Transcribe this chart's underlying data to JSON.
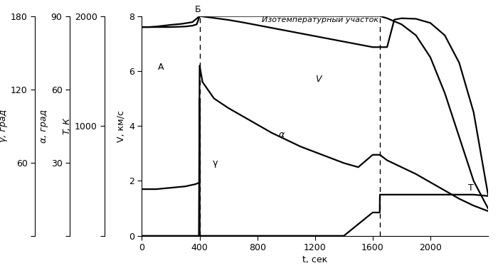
{
  "xlabel": "t, сек",
  "ylabel_V": "V, км/с",
  "ylabel_T": "T, К",
  "ylabel_alpha": "α, град",
  "ylabel_gamma": "γ, град",
  "xlim": [
    0,
    2400
  ],
  "ylim_V": [
    0,
    8
  ],
  "xticks": [
    0,
    400,
    800,
    1200,
    1600,
    2000
  ],
  "yticks_V": [
    0,
    2,
    4,
    6,
    8
  ],
  "yticks_T_labels": [
    "",
    "1000",
    "2000"
  ],
  "yticks_T_vals": [
    0,
    4,
    8
  ],
  "yticks_alpha_labels": [
    "",
    "30",
    "60",
    "90"
  ],
  "yticks_alpha_vals": [
    0,
    2.667,
    5.333,
    8
  ],
  "yticks_gamma_labels": [
    "",
    "60",
    "120",
    "180"
  ],
  "yticks_gamma_vals": [
    0,
    2.667,
    5.333,
    8
  ],
  "label_A": "А",
  "label_B": "Б",
  "label_T": "Т",
  "label_V": "V",
  "label_alpha": "α",
  "label_gamma": "γ",
  "annotation": "Изотемпературный участок",
  "dashed_line_x1": 400,
  "dashed_line_x2": 1650,
  "V_curve_t": [
    0,
    50,
    100,
    150,
    200,
    280,
    350,
    400,
    500,
    600,
    700,
    800,
    900,
    1000,
    1100,
    1200,
    1300,
    1400,
    1500,
    1600,
    1650,
    1700,
    1750,
    1800,
    1900,
    2000,
    2100,
    2200,
    2300,
    2350,
    2400
  ],
  "V_curve_v": [
    7.6,
    7.6,
    7.62,
    7.65,
    7.68,
    7.72,
    7.78,
    8.0,
    7.93,
    7.86,
    7.77,
    7.67,
    7.57,
    7.47,
    7.37,
    7.27,
    7.17,
    7.07,
    6.97,
    6.87,
    6.87,
    6.87,
    7.87,
    7.92,
    7.9,
    7.75,
    7.3,
    6.3,
    4.5,
    3.0,
    1.5
  ],
  "T_curve_t": [
    0,
    50,
    100,
    200,
    300,
    350,
    380,
    400,
    500,
    600,
    800,
    1000,
    1200,
    1400,
    1600,
    1650,
    1700,
    1800,
    1900,
    2000,
    2100,
    2200,
    2300,
    2400
  ],
  "T_curve_v": [
    7.6,
    7.6,
    7.6,
    7.6,
    7.62,
    7.65,
    7.7,
    8.0,
    8.0,
    8.0,
    8.0,
    8.0,
    8.0,
    8.0,
    8.0,
    8.0,
    7.92,
    7.7,
    7.3,
    6.5,
    5.2,
    3.6,
    2.0,
    1.0
  ],
  "alpha_curve_t": [
    0,
    100,
    250,
    350,
    395,
    400,
    420,
    500,
    600,
    700,
    800,
    900,
    1000,
    1100,
    1200,
    1300,
    1400,
    1500,
    1600,
    1650,
    1700,
    1800,
    1900,
    2000,
    2100,
    2200,
    2300,
    2400
  ],
  "alpha_curve_v": [
    0,
    0,
    0,
    0,
    0,
    6.2,
    5.6,
    5.0,
    4.65,
    4.35,
    4.05,
    3.75,
    3.5,
    3.25,
    3.05,
    2.85,
    2.65,
    2.5,
    2.95,
    2.95,
    2.75,
    2.5,
    2.25,
    1.95,
    1.65,
    1.35,
    1.1,
    0.9
  ],
  "gamma_curve_t": [
    0,
    100,
    200,
    300,
    370,
    395,
    399,
    400,
    401,
    450,
    600,
    800,
    1000,
    1200,
    1400,
    1600,
    1640,
    1649,
    1650,
    1660,
    1700,
    1800,
    1900,
    2000,
    2100,
    2200,
    2300,
    2400
  ],
  "gamma_curve_v": [
    1.7,
    1.7,
    1.75,
    1.8,
    1.88,
    1.93,
    1.96,
    5.0,
    0.0,
    0.0,
    0.0,
    0.0,
    0.0,
    0.0,
    0.0,
    0.85,
    0.85,
    0.85,
    1.5,
    1.5,
    1.5,
    1.5,
    1.5,
    1.5,
    1.5,
    1.5,
    1.5,
    1.45
  ]
}
